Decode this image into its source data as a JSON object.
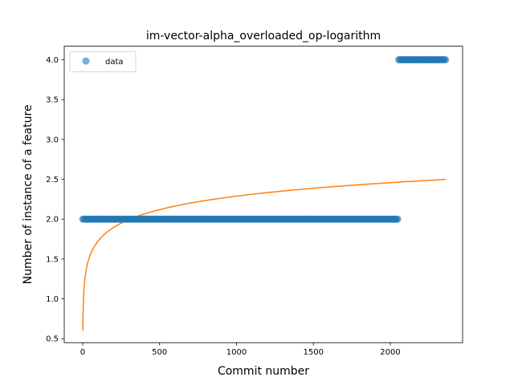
{
  "chart_data": {
    "type": "scatter",
    "title": "im-vector-alpha_overloaded_op-logarithm",
    "xlabel": "Commit number",
    "ylabel": "Number of instance of a feature",
    "xlim": [
      -120,
      2470
    ],
    "ylim": [
      0.45,
      4.17
    ],
    "xticks": [
      0,
      500,
      1000,
      1500,
      2000
    ],
    "yticks": [
      0.5,
      1.0,
      1.5,
      2.0,
      2.5,
      3.0,
      3.5,
      4.0
    ],
    "grid": false,
    "legend": {
      "placement": "top-left",
      "entries": [
        "data"
      ]
    },
    "series": [
      {
        "name": "data",
        "kind": "scatter",
        "color": "#1f77b4",
        "segments": [
          {
            "x_start": 0,
            "x_end": 2055,
            "y": 2.0
          },
          {
            "x_start": 2055,
            "x_end": 2360,
            "y": 4.0
          }
        ]
      },
      {
        "kind": "line",
        "color": "#ff7f0e",
        "fit": {
          "form": "a + b*ln(x)",
          "a": 0.6,
          "b": 0.2444
        },
        "x_range": [
          1,
          2360
        ]
      }
    ]
  }
}
